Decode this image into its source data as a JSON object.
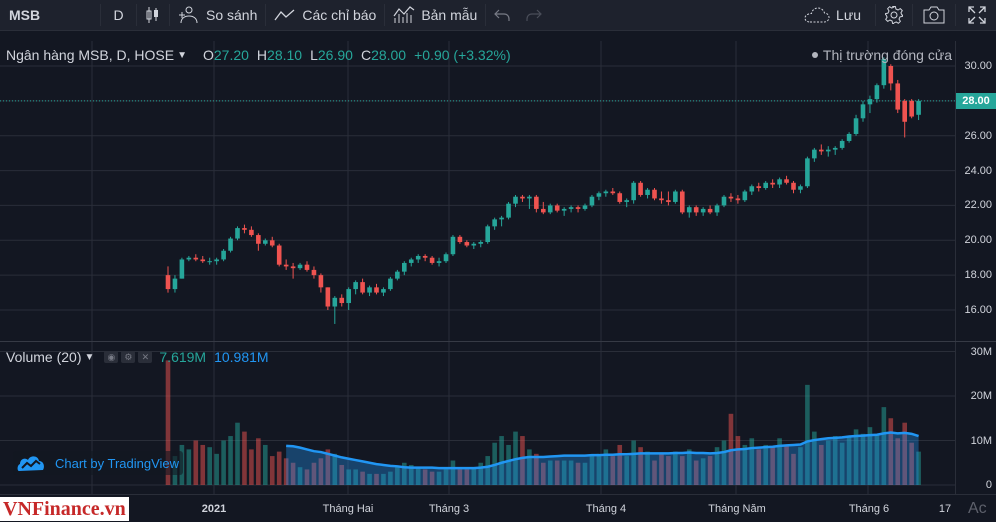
{
  "toolbar": {
    "symbol": "MSB",
    "interval": "D",
    "compare_label": "So sánh",
    "indicators_label": "Các chỉ báo",
    "templates_label": "Bản mẫu",
    "save_label": "Lưu"
  },
  "legend": {
    "title": "Ngân hàng MSB, D, HOSE",
    "open_key": "O",
    "open": "27.20",
    "high_key": "H",
    "high": "28.10",
    "low_key": "L",
    "low": "26.90",
    "close_key": "C",
    "close": "28.00",
    "change": "+0.90 (+3.32%)",
    "market_status": "Thị trường đóng cửa"
  },
  "volume_legend": {
    "title": "Volume (20)",
    "volume": "7.619M",
    "volume_ma": "10.981M"
  },
  "badge": {
    "label": "Chart by TradingView"
  },
  "watermark": "VNFinance.vn",
  "activate_text": "Ac",
  "price_scale": {
    "labels": [
      "30.00",
      "26.00",
      "24.00",
      "22.00",
      "20.00",
      "18.00",
      "16.00"
    ],
    "last_price": "28.00"
  },
  "volume_scale": {
    "labels": [
      "30M",
      "20M",
      "10M",
      "0"
    ]
  },
  "time_axis": {
    "labels": [
      "2021",
      "Tháng Hai",
      "Tháng 3",
      "Tháng 4",
      "Tháng Năm",
      "Tháng 6",
      "17"
    ]
  },
  "colors": {
    "up": "#26a69a",
    "down": "#ef5350",
    "background": "#131722",
    "ma_line": "#2196f3"
  },
  "icons": [
    "candles-icon",
    "compare-icon",
    "indicators-icon",
    "templates-icon",
    "undo-icon",
    "redo-icon",
    "cloud-icon",
    "gear-icon",
    "camera-icon",
    "fullscreen-icon",
    "tradingview-icon"
  ],
  "chart_data": {
    "type": "candlestick",
    "title": "Ngân hàng MSB, D, HOSE",
    "price_range": [
      15.0,
      31.5
    ],
    "volume_range": [
      0,
      30000000
    ],
    "last_close": 28.0,
    "x_labels": [
      "2021",
      "Tháng Hai",
      "Tháng 3",
      "Tháng 4",
      "Tháng Năm",
      "Tháng 6",
      "17"
    ],
    "candles": [
      [
        18.0,
        18.5,
        17.0,
        17.2
      ],
      [
        17.2,
        18.0,
        17.0,
        17.8
      ],
      [
        17.8,
        19.0,
        17.8,
        18.9
      ],
      [
        18.9,
        19.1,
        18.8,
        19.0
      ],
      [
        19.0,
        19.2,
        18.8,
        18.9
      ],
      [
        18.9,
        19.1,
        18.7,
        18.8
      ],
      [
        18.8,
        19.0,
        18.6,
        18.8
      ],
      [
        18.8,
        19.0,
        18.6,
        18.9
      ],
      [
        18.9,
        19.5,
        18.8,
        19.4
      ],
      [
        19.4,
        20.2,
        19.3,
        20.1
      ],
      [
        20.1,
        20.8,
        20.0,
        20.7
      ],
      [
        20.7,
        20.9,
        20.4,
        20.6
      ],
      [
        20.6,
        20.8,
        20.2,
        20.3
      ],
      [
        20.3,
        20.4,
        19.4,
        19.8
      ],
      [
        19.8,
        20.1,
        19.7,
        20.0
      ],
      [
        20.0,
        20.2,
        19.6,
        19.7
      ],
      [
        19.7,
        19.8,
        18.5,
        18.6
      ],
      [
        18.6,
        18.9,
        18.3,
        18.5
      ],
      [
        18.5,
        18.7,
        17.8,
        18.4
      ],
      [
        18.4,
        18.7,
        18.3,
        18.6
      ],
      [
        18.6,
        18.8,
        18.2,
        18.3
      ],
      [
        18.3,
        18.5,
        17.8,
        18.0
      ],
      [
        18.0,
        18.1,
        17.0,
        17.3
      ],
      [
        17.3,
        17.3,
        16.0,
        16.2
      ],
      [
        16.2,
        16.8,
        15.2,
        16.7
      ],
      [
        16.7,
        16.9,
        16.2,
        16.4
      ],
      [
        16.4,
        17.3,
        16.0,
        17.2
      ],
      [
        17.2,
        17.7,
        16.9,
        17.6
      ],
      [
        17.6,
        17.8,
        16.9,
        17.0
      ],
      [
        17.0,
        17.4,
        16.8,
        17.3
      ],
      [
        17.3,
        17.5,
        16.9,
        17.0
      ],
      [
        17.0,
        17.3,
        16.8,
        17.2
      ],
      [
        17.2,
        17.9,
        17.1,
        17.8
      ],
      [
        17.8,
        18.3,
        17.7,
        18.2
      ],
      [
        18.2,
        18.8,
        18.0,
        18.7
      ],
      [
        18.7,
        19.0,
        18.5,
        18.9
      ],
      [
        18.9,
        19.2,
        18.7,
        19.1
      ],
      [
        19.1,
        19.2,
        18.8,
        19.0
      ],
      [
        19.0,
        19.1,
        18.6,
        18.7
      ],
      [
        18.7,
        19.0,
        18.5,
        18.8
      ],
      [
        18.8,
        19.3,
        18.7,
        19.2
      ],
      [
        19.2,
        20.3,
        19.1,
        20.2
      ],
      [
        20.2,
        20.3,
        19.8,
        19.9
      ],
      [
        19.9,
        20.0,
        19.6,
        19.7
      ],
      [
        19.7,
        19.9,
        19.5,
        19.8
      ],
      [
        19.8,
        20.0,
        19.6,
        19.9
      ],
      [
        19.9,
        20.9,
        19.8,
        20.8
      ],
      [
        20.8,
        21.3,
        20.6,
        21.2
      ],
      [
        21.2,
        21.4,
        20.8,
        21.3
      ],
      [
        21.3,
        22.2,
        21.2,
        22.1
      ],
      [
        22.1,
        22.6,
        21.9,
        22.5
      ],
      [
        22.5,
        22.6,
        22.2,
        22.4
      ],
      [
        22.4,
        22.6,
        21.8,
        22.5
      ],
      [
        22.5,
        22.6,
        21.6,
        21.8
      ],
      [
        21.8,
        22.2,
        21.5,
        21.6
      ],
      [
        21.6,
        22.1,
        21.5,
        22.0
      ],
      [
        22.0,
        22.1,
        21.6,
        21.7
      ],
      [
        21.7,
        21.9,
        21.4,
        21.8
      ],
      [
        21.8,
        22.0,
        21.6,
        21.9
      ],
      [
        21.9,
        22.0,
        21.6,
        21.8
      ],
      [
        21.8,
        22.1,
        21.7,
        22.0
      ],
      [
        22.0,
        22.6,
        21.9,
        22.5
      ],
      [
        22.5,
        22.8,
        22.3,
        22.7
      ],
      [
        22.7,
        22.9,
        22.5,
        22.8
      ],
      [
        22.8,
        23.0,
        22.6,
        22.7
      ],
      [
        22.7,
        22.8,
        22.1,
        22.2
      ],
      [
        22.2,
        22.4,
        21.9,
        22.3
      ],
      [
        22.3,
        23.4,
        22.1,
        23.3
      ],
      [
        23.3,
        23.4,
        22.5,
        22.6
      ],
      [
        22.6,
        23.0,
        22.4,
        22.9
      ],
      [
        22.9,
        23.0,
        22.3,
        22.4
      ],
      [
        22.4,
        22.8,
        22.1,
        22.3
      ],
      [
        22.3,
        22.8,
        22.0,
        22.2
      ],
      [
        22.2,
        22.9,
        22.1,
        22.8
      ],
      [
        22.8,
        22.9,
        21.5,
        21.6
      ],
      [
        21.6,
        22.0,
        21.3,
        21.9
      ],
      [
        21.9,
        22.0,
        21.4,
        21.6
      ],
      [
        21.6,
        21.9,
        21.4,
        21.8
      ],
      [
        21.8,
        22.0,
        21.5,
        21.6
      ],
      [
        21.6,
        22.1,
        21.4,
        22.0
      ],
      [
        22.0,
        22.6,
        21.9,
        22.5
      ],
      [
        22.5,
        22.7,
        22.2,
        22.4
      ],
      [
        22.4,
        22.6,
        22.1,
        22.3
      ],
      [
        22.3,
        22.9,
        22.2,
        22.8
      ],
      [
        22.8,
        23.2,
        22.6,
        23.1
      ],
      [
        23.1,
        23.3,
        22.8,
        23.0
      ],
      [
        23.0,
        23.4,
        22.9,
        23.3
      ],
      [
        23.3,
        23.5,
        23.0,
        23.2
      ],
      [
        23.2,
        23.6,
        23.0,
        23.5
      ],
      [
        23.5,
        23.7,
        23.2,
        23.3
      ],
      [
        23.3,
        23.4,
        22.7,
        22.9
      ],
      [
        22.9,
        23.2,
        22.7,
        23.1
      ],
      [
        23.1,
        24.8,
        23.0,
        24.7
      ],
      [
        24.7,
        25.3,
        24.5,
        25.2
      ],
      [
        25.2,
        25.5,
        24.9,
        25.1
      ],
      [
        25.1,
        25.4,
        24.8,
        25.2
      ],
      [
        25.2,
        25.4,
        24.9,
        25.3
      ],
      [
        25.3,
        25.8,
        25.2,
        25.7
      ],
      [
        25.7,
        26.2,
        25.6,
        26.1
      ],
      [
        26.1,
        27.2,
        26.0,
        27.0
      ],
      [
        27.0,
        28.0,
        26.8,
        27.8
      ],
      [
        27.8,
        28.3,
        27.3,
        28.1
      ],
      [
        28.1,
        29.0,
        27.9,
        28.9
      ],
      [
        28.9,
        30.5,
        28.7,
        30.4
      ],
      [
        30.0,
        30.1,
        28.6,
        29.0
      ],
      [
        29.0,
        29.2,
        27.3,
        27.5
      ],
      [
        28.0,
        28.1,
        25.9,
        26.8
      ],
      [
        28.0,
        28.1,
        27.0,
        27.1
      ],
      [
        27.2,
        28.1,
        26.9,
        28.0
      ]
    ],
    "volume_millions": [
      28.0,
      6.5,
      9.0,
      8.0,
      10.0,
      9.0,
      8.5,
      7.0,
      10.0,
      11.0,
      14.0,
      12.0,
      8.0,
      10.5,
      9.0,
      6.5,
      7.5,
      6.0,
      5.0,
      4.0,
      3.5,
      5.0,
      6.0,
      8.0,
      7.0,
      4.5,
      3.5,
      3.5,
      3.0,
      2.5,
      2.5,
      2.5,
      3.0,
      4.0,
      5.0,
      4.5,
      4.0,
      3.5,
      3.0,
      3.0,
      3.5,
      5.5,
      3.5,
      3.5,
      4.0,
      5.0,
      6.5,
      9.5,
      11.0,
      9.0,
      12.0,
      11.0,
      8.0,
      7.0,
      5.0,
      5.5,
      5.5,
      5.5,
      5.5,
      5.0,
      5.0,
      6.5,
      7.0,
      8.0,
      6.5,
      9.0,
      6.5,
      10.0,
      8.5,
      7.5,
      5.5,
      7.0,
      6.5,
      7.5,
      6.5,
      8.0,
      5.5,
      6.0,
      6.5,
      8.5,
      10.0,
      16.0,
      11.0,
      9.0,
      10.5,
      8.0,
      9.0,
      8.5,
      10.5,
      9.0,
      7.0,
      8.5,
      22.5,
      12.0,
      9.0,
      10.0,
      11.0,
      9.5,
      11.0,
      12.5,
      11.5,
      13.0,
      11.5,
      17.5,
      15.0,
      10.5,
      14.0,
      9.5,
      7.5
    ],
    "volume_ma_millions": [
      null,
      null,
      null,
      null,
      null,
      null,
      null,
      null,
      null,
      null,
      null,
      null,
      null,
      null,
      null,
      null,
      null,
      8.8,
      8.7,
      8.4,
      8.0,
      7.6,
      7.4,
      7.0,
      6.6,
      6.2,
      5.9,
      5.6,
      5.3,
      5.0,
      4.7,
      4.5,
      4.3,
      4.2,
      4.0,
      3.9,
      3.9,
      3.9,
      3.9,
      3.8,
      3.8,
      3.8,
      3.8,
      3.8,
      3.8,
      3.9,
      4.1,
      4.5,
      5.0,
      5.4,
      5.8,
      6.1,
      6.3,
      6.3,
      6.3,
      6.4,
      6.5,
      6.6,
      6.6,
      6.6,
      6.6,
      6.7,
      6.7,
      6.8,
      6.8,
      6.9,
      6.9,
      7.0,
      7.1,
      7.1,
      7.1,
      7.1,
      7.1,
      7.2,
      7.2,
      7.3,
      7.2,
      7.2,
      7.1,
      7.2,
      7.4,
      7.8,
      8.0,
      8.1,
      8.3,
      8.4,
      8.5,
      8.6,
      8.8,
      8.9,
      9.0,
      9.1,
      9.8,
      10.1,
      10.3,
      10.5,
      10.6,
      10.7,
      10.9,
      11.0,
      11.1,
      11.2,
      11.3,
      11.6,
      11.8,
      11.6,
      11.7,
      11.5,
      11.0
    ]
  }
}
